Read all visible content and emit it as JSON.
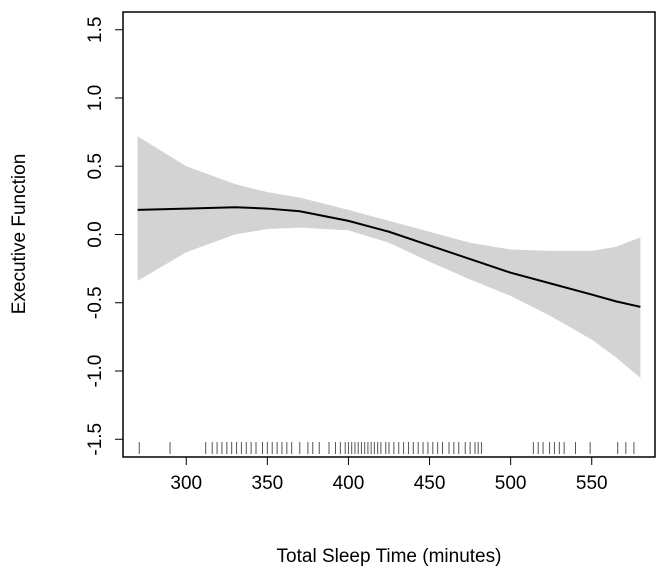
{
  "chart_data": {
    "type": "line",
    "x_label": "Total Sleep Time (minutes)",
    "y_label": "Executive Function",
    "x": [
      270,
      300,
      330,
      350,
      370,
      400,
      425,
      450,
      475,
      500,
      525,
      550,
      565,
      580
    ],
    "series": [
      {
        "color": "#000000",
        "values": [
          0.18,
          0.19,
          0.2,
          0.19,
          0.17,
          0.1,
          0.02,
          -0.08,
          -0.18,
          -0.28,
          -0.36,
          -0.44,
          -0.49,
          -0.53
        ]
      }
    ],
    "band": {
      "color": "#d3d3d3",
      "upper": [
        0.72,
        0.5,
        0.37,
        0.31,
        0.27,
        0.18,
        0.1,
        0.02,
        -0.06,
        -0.11,
        -0.12,
        -0.12,
        -0.09,
        -0.02
      ],
      "lower": [
        -0.34,
        -0.13,
        0.0,
        0.04,
        0.05,
        0.03,
        -0.06,
        -0.2,
        -0.33,
        -0.45,
        -0.6,
        -0.77,
        -0.9,
        -1.05
      ]
    },
    "rug": [
      271,
      290,
      312,
      316,
      319,
      322,
      325,
      328,
      331,
      334,
      337,
      340,
      343,
      347,
      350,
      353,
      356,
      359,
      362,
      365,
      370,
      375,
      378,
      382,
      388,
      392,
      395,
      398,
      400,
      402,
      404,
      406,
      408,
      410,
      412,
      414,
      416,
      418,
      420,
      423,
      425,
      428,
      431,
      434,
      437,
      440,
      443,
      446,
      449,
      452,
      455,
      458,
      462,
      465,
      468,
      472,
      475,
      478,
      480,
      482,
      514,
      517,
      520,
      524,
      527,
      530,
      533,
      540,
      549,
      566,
      571,
      576
    ],
    "xlim": [
      261,
      589
    ],
    "ylim": [
      -1.63,
      1.63
    ],
    "xticks": [
      300,
      350,
      400,
      450,
      500,
      550
    ],
    "yticks": [
      -1.5,
      {
        "value": -1,
        "label": "-1.0"
      },
      -0.5,
      {
        "value": 0,
        "label": "0.0"
      },
      0.5,
      {
        "value": 1,
        "label": "1.0"
      },
      1.5
    ]
  }
}
